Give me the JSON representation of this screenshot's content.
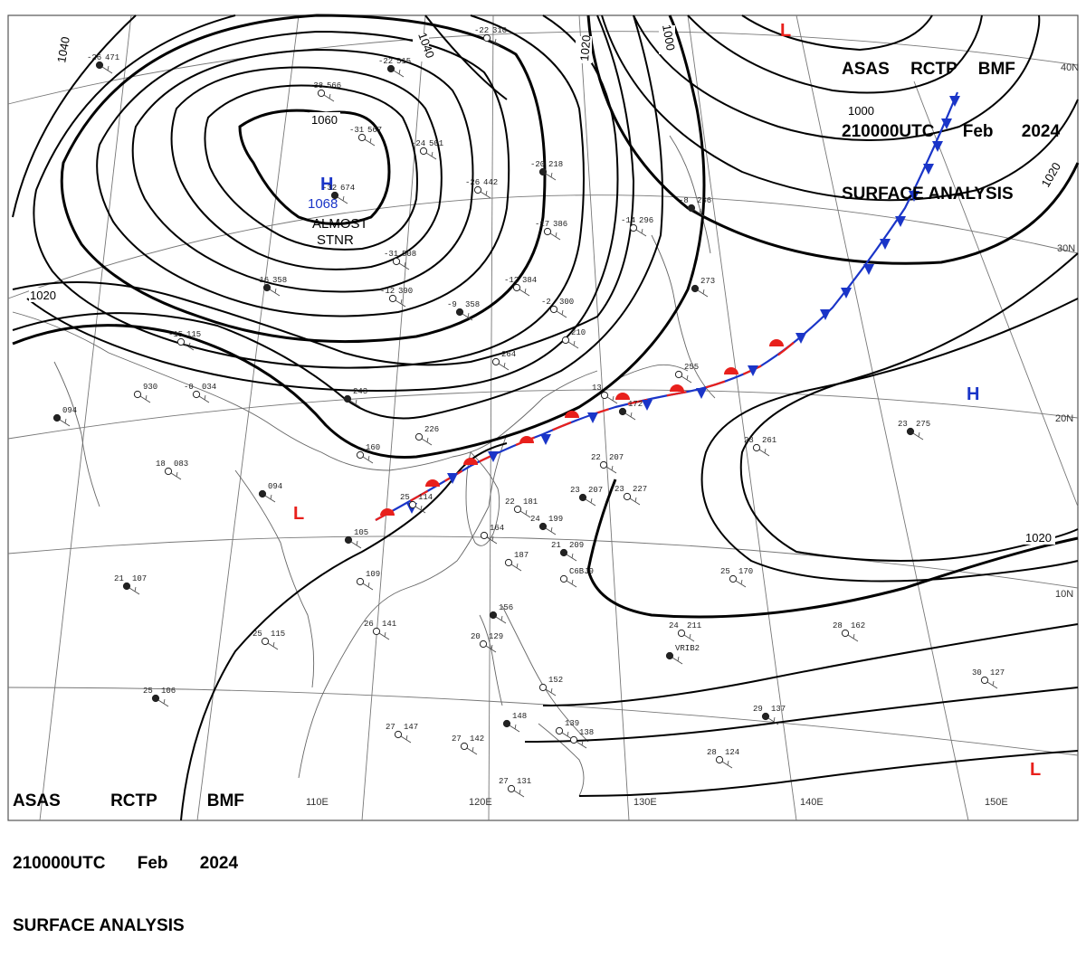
{
  "header": {
    "agency": "ASAS",
    "station": "RCTP",
    "office": "BMF",
    "valid_time": "210000UTC",
    "month": "Feb",
    "year": "2024",
    "product": "SURFACE ANALYSIS"
  },
  "isobars": {
    "labels": [
      "1040",
      "1040",
      "1020",
      "1000",
      "1060",
      "1020",
      "1000",
      "1020",
      "1020"
    ]
  },
  "pressure_centers": {
    "high_main": {
      "symbol": "H",
      "value": "1068",
      "note_line1": "ALMOST",
      "note_line2": "STNR"
    },
    "high_east": {
      "symbol": "H"
    },
    "low_north": {
      "symbol": "L"
    },
    "low_west": {
      "symbol": "L"
    },
    "low_southeast": {
      "symbol": "L"
    }
  },
  "grid": {
    "lat_labels": [
      "40N",
      "30N",
      "20N",
      "10N"
    ],
    "lon_labels": [
      "110E",
      "120E",
      "130E",
      "140E",
      "150E"
    ]
  },
  "colors": {
    "warm_front": "#e8201c",
    "cold_front": "#1a35c8",
    "high_label": "#1a35c8",
    "low_label": "#e8201c"
  },
  "stations": [
    {
      "t": "-26",
      "p": "471"
    },
    {
      "t": "-38",
      "p": "566"
    },
    {
      "t": "-31",
      "p": "567"
    },
    {
      "t": "-22",
      "p": "515"
    },
    {
      "t": "-22",
      "p": "310"
    },
    {
      "t": "-24",
      "p": "501"
    },
    {
      "t": "-32",
      "p": "674"
    },
    {
      "t": "-31",
      "p": "508"
    },
    {
      "t": "-26",
      "p": "442"
    },
    {
      "t": "-20",
      "p": "218"
    },
    {
      "t": "-17",
      "p": "386"
    },
    {
      "t": "-14",
      "p": "296"
    },
    {
      "t": "-8",
      "p": "236"
    },
    {
      "t": "-12",
      "p": "384"
    },
    {
      "t": "-12",
      "p": "390"
    },
    {
      "t": "-9",
      "p": "358"
    },
    {
      "t": "-2",
      "p": "300"
    },
    {
      "t": "-15",
      "p": "115"
    },
    {
      "t": "-16",
      "p": "358"
    },
    {
      "t": "-0",
      "p": "034"
    },
    {
      "t": "",
      "p": "930"
    },
    {
      "t": "",
      "p": "094"
    },
    {
      "t": "18",
      "p": "083"
    },
    {
      "t": "",
      "p": "264"
    },
    {
      "t": "",
      "p": "243"
    },
    {
      "t": "",
      "p": "226"
    },
    {
      "t": "",
      "p": "160"
    },
    {
      "t": "",
      "p": "094"
    },
    {
      "t": "25",
      "p": "114"
    },
    {
      "t": "22",
      "p": "207"
    },
    {
      "t": "23",
      "p": "207"
    },
    {
      "t": "23",
      "p": "227"
    },
    {
      "t": "22",
      "p": "181"
    },
    {
      "t": "24",
      "p": "199"
    },
    {
      "t": "",
      "p": "164"
    },
    {
      "t": "",
      "p": "187"
    },
    {
      "t": "21",
      "p": "209"
    },
    {
      "t": "",
      "p": "C6BJ9"
    },
    {
      "t": "23",
      "p": "261"
    },
    {
      "t": "23",
      "p": "275"
    },
    {
      "t": "25",
      "p": "170"
    },
    {
      "t": "24",
      "p": "211"
    },
    {
      "t": "",
      "p": "VRIB2"
    },
    {
      "t": "28",
      "p": "162"
    },
    {
      "t": "30",
      "p": "127"
    },
    {
      "t": "21",
      "p": "107"
    },
    {
      "t": "25",
      "p": "115"
    },
    {
      "t": "26",
      "p": "141"
    },
    {
      "t": "25",
      "p": "106"
    },
    {
      "t": "27",
      "p": "147"
    },
    {
      "t": "27",
      "p": "142"
    },
    {
      "t": "",
      "p": "156"
    },
    {
      "t": "20",
      "p": "129"
    },
    {
      "t": "",
      "p": "152"
    },
    {
      "t": "",
      "p": "148"
    },
    {
      "t": "",
      "p": "139"
    },
    {
      "t": "",
      "p": "138"
    },
    {
      "t": "29",
      "p": "137"
    },
    {
      "t": "28",
      "p": "124"
    },
    {
      "t": "27",
      "p": "131"
    },
    {
      "t": "",
      "p": "172"
    },
    {
      "t": "13",
      "p": ""
    },
    {
      "t": "",
      "p": "210"
    },
    {
      "t": "",
      "p": "273"
    },
    {
      "t": "",
      "p": "255"
    },
    {
      "t": "",
      "p": "109"
    },
    {
      "t": "",
      "p": "105"
    }
  ]
}
